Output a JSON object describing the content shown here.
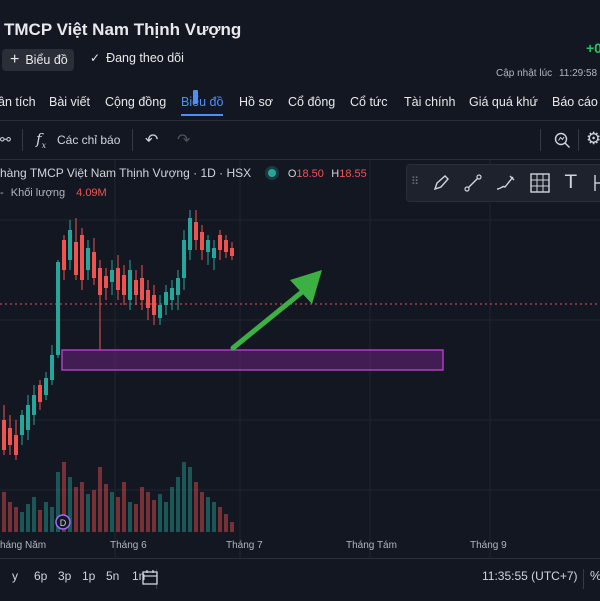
{
  "header": {
    "title": "TMCP Việt Nam Thịnh Vượng",
    "price_fragment": "+0",
    "chart_button": "Biểu đồ",
    "follow_button": "Đang theo dõi",
    "updated_label": "Cập nhật lúc",
    "updated_time": "11:29:58"
  },
  "nav": {
    "items": [
      "ân tích",
      "Bài viết",
      "Cộng đồng",
      "Biểu đồ",
      "Hồ sơ",
      "Cổ đông",
      "Cổ tức",
      "Tài chính",
      "Giá quá khứ",
      "Báo cáo"
    ],
    "active_index": 3
  },
  "toolbar": {
    "indicators_label": "Các chỉ báo"
  },
  "legend": {
    "symbol": "hàng TMCP Việt Nam Thịnh Vượng · 1D · HSX",
    "o_label": "O",
    "o_value": "18.50",
    "h_label": "H",
    "h_value": "18.55",
    "volume_label": "Khối lượng",
    "volume_value": "4.09M"
  },
  "xaxis": {
    "labels": [
      "háng Năm",
      "Tháng 6",
      "Tháng 7",
      "Tháng Tám",
      "Tháng 9"
    ]
  },
  "bottom": {
    "timeframes": [
      "y",
      "6p",
      "3p",
      "1p",
      "5n",
      "1n"
    ],
    "clock": "11:35:55 (UTC+7)"
  },
  "colors": {
    "up": "#26a69a",
    "down": "#ef5350",
    "zone": "#9c27b0",
    "arrow": "#3cb043",
    "accent": "#4f8ef7"
  }
}
